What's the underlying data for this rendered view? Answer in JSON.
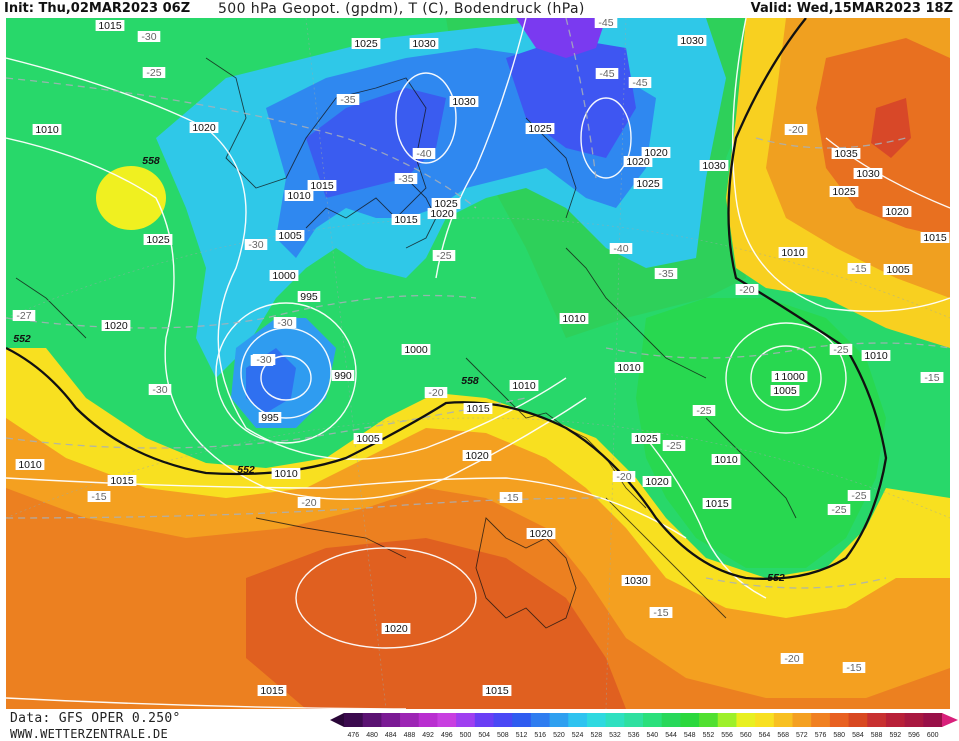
{
  "header": {
    "init": "Init: Thu,02MAR2023 06Z",
    "title": "500 hPa Geopot. (gpdm), T (C), Bodendruck (hPa)",
    "valid": "Valid: Wed,15MAR2023 18Z"
  },
  "footer": {
    "source": "Data: GFS OPER 0.250°",
    "website": "WWW.WETTERZENTRALE.DE"
  },
  "colorbar": {
    "ticks": [
      "476",
      "480",
      "484",
      "488",
      "492",
      "496",
      "500",
      "504",
      "508",
      "512",
      "516",
      "520",
      "524",
      "528",
      "532",
      "536",
      "540",
      "544",
      "548",
      "552",
      "556",
      "560",
      "564",
      "568",
      "572",
      "576",
      "580",
      "584",
      "588",
      "592",
      "596",
      "600"
    ],
    "colors": [
      "#3b0a4e",
      "#5a1272",
      "#7a1a94",
      "#9c24b4",
      "#b92ed0",
      "#c83fe0",
      "#9f3ff0",
      "#6a3ef5",
      "#4a48f5",
      "#2f5cf0",
      "#2f7df0",
      "#2fa0f0",
      "#2fc3f0",
      "#2fd9e0",
      "#2fe0c0",
      "#2fe0a0",
      "#2ae07c",
      "#28d85a",
      "#2ad83c",
      "#50e030",
      "#9ef02a",
      "#e8f020",
      "#f8e020",
      "#f8c020",
      "#f4a020",
      "#f08020",
      "#e86020",
      "#d84820",
      "#c83030",
      "#b82038",
      "#a81840",
      "#981048"
    ]
  },
  "map": {
    "pressure_labels": [
      "1015",
      "1010",
      "1020",
      "1025",
      "1030",
      "1025",
      "1010",
      "1015",
      "1005",
      "1000",
      "995",
      "990",
      "1000",
      "995",
      "1000",
      "1020",
      "1010",
      "1015",
      "1020",
      "1005",
      "1010",
      "1010",
      "1015",
      "1025",
      "1030",
      "1020",
      "1015",
      "1010",
      "1020",
      "1030",
      "1030",
      "1025",
      "1035",
      "1030",
      "1025",
      "1020",
      "1015",
      "1010",
      "1005",
      "1000",
      "1005",
      "1010",
      "1010",
      "1025",
      "1015",
      "1020",
      "1020",
      "1020",
      "1015",
      "1015",
      "1020",
      "1025",
      "1030",
      "1010",
      "1010",
      "1030"
    ],
    "temperature_labels": [
      "-30",
      "-25",
      "-35",
      "-30",
      "-40",
      "-45",
      "-45",
      "-35",
      "-25",
      "-30",
      "-25",
      "-20",
      "-15",
      "-15",
      "-15",
      "-20",
      "-15",
      "-15",
      "-20",
      "-25",
      "-25",
      "-25",
      "-25",
      "-20",
      "-20",
      "-25",
      "-15",
      "-15",
      "-15",
      "-20",
      "-27",
      "-15",
      "-30",
      "-30",
      "-40",
      "-35",
      "-20",
      "-15",
      "-45"
    ],
    "geopotential_labels": [
      "558",
      "552",
      "558",
      "552",
      "552"
    ]
  }
}
